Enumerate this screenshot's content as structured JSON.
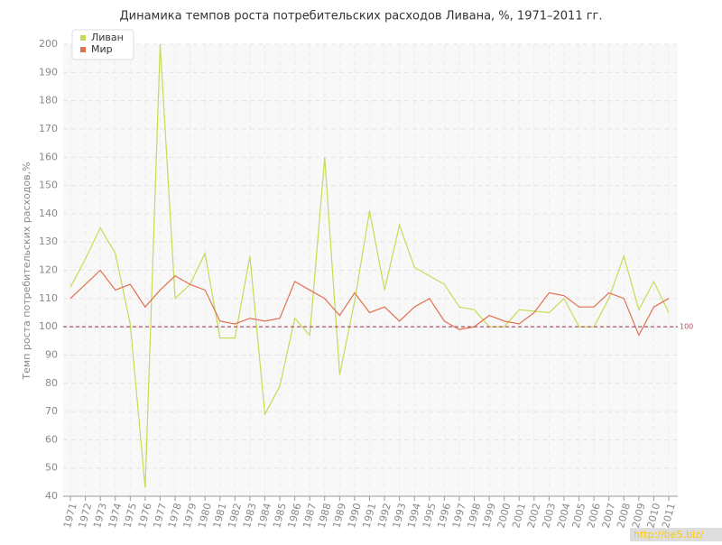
{
  "chart_data": {
    "type": "line",
    "title": "Динамика темпов роста потребительских расходов Ливана, %, 1971–2011 гг.",
    "y_label": "Темп роста потребительских расходов,%",
    "categories": [
      "1971",
      "1972",
      "1973",
      "1974",
      "1975",
      "1976",
      "1977",
      "1978",
      "1979",
      "1980",
      "1981",
      "1982",
      "1983",
      "1984",
      "1985",
      "1986",
      "1987",
      "1988",
      "1989",
      "1990",
      "1991",
      "1992",
      "1993",
      "1994",
      "1995",
      "1996",
      "1997",
      "1998",
      "1999",
      "2000",
      "2001",
      "2002",
      "2003",
      "2004",
      "2005",
      "2006",
      "2007",
      "2008",
      "2009",
      "2010",
      "2011"
    ],
    "series": [
      {
        "name": "Ливан",
        "color": "#c2dd55",
        "values": [
          114,
          124,
          135,
          126,
          101,
          43,
          200,
          110,
          115,
          126,
          96,
          96,
          125,
          69,
          79,
          103,
          97,
          160,
          83,
          109,
          141,
          113,
          136,
          121,
          118,
          115,
          107,
          106,
          100,
          100,
          106,
          105.5,
          105,
          110,
          100,
          100,
          110,
          125,
          106,
          116,
          105
        ]
      },
      {
        "name": "Мир",
        "color": "#e0714f",
        "values": [
          110,
          115,
          120,
          113,
          115,
          107,
          113,
          118,
          115,
          113,
          102,
          101,
          103,
          102,
          103,
          116,
          113,
          110,
          104,
          112,
          105,
          107,
          102,
          107,
          110,
          102,
          99,
          100,
          104,
          102,
          101,
          105,
          112,
          111,
          107,
          107,
          112,
          110,
          97,
          107,
          110
        ]
      }
    ],
    "ylim": [
      40,
      200
    ],
    "yticks": [
      40,
      50,
      60,
      70,
      80,
      90,
      100,
      110,
      120,
      130,
      140,
      150,
      160,
      170,
      180,
      190,
      200
    ],
    "grid": true,
    "legend": "top-left",
    "reference_line": {
      "value": 100,
      "color": "#b05060"
    },
    "watermark": "http://be5.biz/"
  }
}
